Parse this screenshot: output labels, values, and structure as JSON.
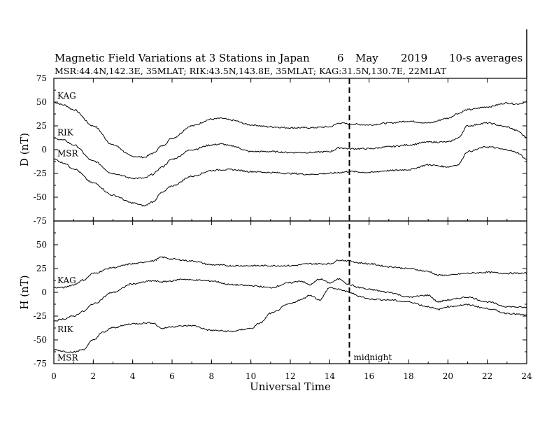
{
  "header": {
    "title_main": "Magnetic Field Variations at 3 Stations in Japan",
    "title_day": "6",
    "title_month": "May",
    "title_year": "2019",
    "title_avg": "10-s averages",
    "subtitle": "MSR:44.4N,142.3E, 35MLAT;  RIK:43.5N,143.8E, 35MLAT;  KAG:31.5N,130.7E, 22MLAT"
  },
  "chart_data": {
    "type": "line",
    "xlabel": "Universal Time",
    "xlim": [
      0,
      24
    ],
    "x_ticks": [
      "0",
      "2",
      "4",
      "6",
      "8",
      "10",
      "12",
      "14",
      "16",
      "18",
      "20",
      "22",
      "24"
    ],
    "grid": false,
    "annotation": {
      "x": 15,
      "label": "midnight",
      "style": "dashed vertical line"
    },
    "panels": [
      {
        "id": "D",
        "ylabel": "D (nT)",
        "ylim": [
          -75,
          75
        ],
        "y_ticks": [
          "75",
          "50",
          "25",
          "0",
          "-25",
          "-50",
          "-75"
        ],
        "series": [
          {
            "name": "KAG",
            "x": [
              0,
              0.5,
              1,
              2,
              3,
              4,
              4.6,
              5,
              5.5,
              6,
              7,
              8,
              8.5,
              9,
              10,
              11,
              12,
              13,
              14,
              14.5,
              15,
              16,
              17,
              18,
              19,
              20,
              20.5,
              21,
              22,
              23,
              23.5,
              24
            ],
            "y": [
              50,
              47,
              42,
              25,
              5,
              -7,
              -8,
              -4,
              4,
              12,
              25,
              32,
              33,
              31,
              26,
              24,
              23,
              23,
              24,
              28,
              27,
              26,
              28,
              30,
              28,
              33,
              38,
              42,
              45,
              49,
              48,
              50
            ]
          },
          {
            "name": "RIK",
            "x": [
              0,
              0.5,
              1,
              2,
              3,
              4,
              4.6,
              5,
              5.5,
              6,
              7,
              8,
              8.5,
              9,
              10,
              11,
              12,
              13,
              14,
              14.5,
              15,
              16,
              17,
              18,
              19,
              20,
              20.5,
              21,
              22,
              23,
              23.5,
              24
            ],
            "y": [
              12,
              10,
              5,
              -12,
              -25,
              -30,
              -30,
              -26,
              -18,
              -10,
              0,
              5,
              6,
              4,
              -2,
              -2,
              -3,
              -3,
              -2,
              2,
              1,
              1,
              3,
              5,
              8,
              8,
              12,
              25,
              28,
              24,
              20,
              13
            ]
          },
          {
            "name": "MSR",
            "x": [
              0,
              0.5,
              1,
              2,
              3,
              4,
              4.6,
              5,
              5.5,
              6,
              7,
              8,
              8.5,
              9,
              10,
              11,
              12,
              13,
              14,
              14.5,
              15,
              16,
              17,
              18,
              19,
              20,
              20.5,
              21,
              22,
              23,
              23.5,
              24
            ],
            "y": [
              -10,
              -14,
              -20,
              -35,
              -48,
              -56,
              -59,
              -55,
              -45,
              -38,
              -28,
              -22,
              -21,
              -21,
              -23,
              -24,
              -25,
              -26,
              -25,
              -24,
              -23,
              -24,
              -22,
              -21,
              -16,
              -18,
              -16,
              -2,
              3,
              0,
              -3,
              -10
            ]
          }
        ]
      },
      {
        "id": "H",
        "ylabel": "H (nT)",
        "ylim": [
          -75,
          75
        ],
        "y_ticks": [
          "75",
          "50",
          "25",
          "0",
          "-25",
          "-50",
          "-75"
        ],
        "series": [
          {
            "name": "KAG",
            "x": [
              0,
              0.5,
              1,
              1.5,
              2,
              3,
              4,
              5,
              5.5,
              6,
              7,
              8,
              9,
              10,
              11,
              12,
              13,
              14,
              14.5,
              15,
              15.5,
              16,
              17,
              18,
              19,
              19.5,
              20,
              21,
              22,
              23,
              24
            ],
            "y": [
              5,
              5,
              8,
              13,
              20,
              26,
              30,
              33,
              37,
              35,
              33,
              29,
              28,
              28,
              28,
              28,
              30,
              30,
              34,
              33,
              31,
              30,
              27,
              25,
              22,
              18,
              18,
              20,
              21,
              20,
              20
            ]
          },
          {
            "name": "RIK",
            "x": [
              0,
              0.5,
              1,
              1.5,
              2,
              3,
              4,
              5,
              5.5,
              6,
              6.5,
              7,
              8,
              9,
              10,
              11,
              12,
              12.5,
              13,
              13.5,
              14,
              14.5,
              15,
              15.5,
              16,
              17,
              18,
              19,
              19.5,
              20,
              21,
              22,
              23,
              24
            ],
            "y": [
              -30,
              -28,
              -25,
              -20,
              -12,
              0,
              9,
              12,
              11,
              12,
              14,
              13,
              12,
              8,
              7,
              5,
              10,
              12,
              8,
              14,
              10,
              14,
              8,
              5,
              3,
              0,
              -5,
              -3,
              -10,
              -8,
              -5,
              -10,
              -15,
              -16
            ]
          },
          {
            "name": "MSR",
            "x": [
              0,
              0.5,
              1,
              1.5,
              2,
              2.5,
              3,
              4,
              5,
              5.5,
              6,
              7,
              8,
              9,
              10,
              10.5,
              11,
              12,
              12.5,
              13,
              13.5,
              14,
              14.5,
              15,
              15.5,
              16,
              17,
              18,
              19,
              19.5,
              20,
              21,
              22,
              23,
              24
            ],
            "y": [
              -60,
              -62,
              -63,
              -60,
              -50,
              -42,
              -37,
              -33,
              -32,
              -38,
              -36,
              -35,
              -40,
              -41,
              -38,
              -32,
              -22,
              -12,
              -8,
              -3,
              -8,
              5,
              3,
              0,
              -4,
              -7,
              -8,
              -10,
              -15,
              -18,
              -15,
              -13,
              -17,
              -22,
              -24
            ]
          }
        ]
      }
    ]
  }
}
